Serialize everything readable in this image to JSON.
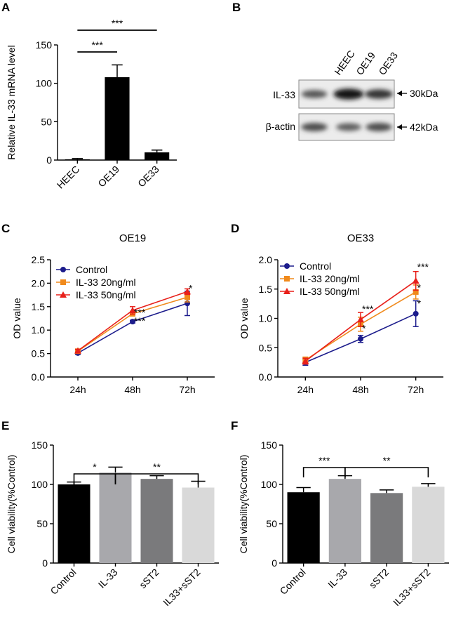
{
  "chart_data": [
    {
      "panel": "A",
      "type": "bar",
      "title": "",
      "xlabel": "",
      "ylabel": "Relative IL-33 mRNA level",
      "ylim": [
        0,
        150
      ],
      "yticks": [
        0,
        50,
        100,
        150
      ],
      "categories": [
        "HEEC",
        "OE19",
        "OE33"
      ],
      "values": [
        1,
        108,
        10
      ],
      "errors": [
        1,
        16,
        3
      ],
      "colors": [
        "#000000",
        "#000000",
        "#000000"
      ],
      "significance": [
        {
          "from": 0,
          "to": 1,
          "label": "***"
        },
        {
          "from": 0,
          "to": 2,
          "label": "***"
        }
      ]
    },
    {
      "panel": "C",
      "type": "line",
      "title": "OE19",
      "xlabel": "",
      "ylabel": "OD value",
      "ylim": [
        0,
        2.5
      ],
      "yticks": [
        0.0,
        0.5,
        1.0,
        1.5,
        2.0,
        2.5
      ],
      "x": [
        "24h",
        "48h",
        "72h"
      ],
      "series": [
        {
          "name": "Control",
          "color": "#1c1c8c",
          "marker": "circle",
          "values": [
            0.51,
            1.18,
            1.57
          ],
          "errors": [
            0.03,
            0.03,
            0.26
          ]
        },
        {
          "name": "IL-33 20ng/ml",
          "color": "#f08a1c",
          "marker": "square",
          "values": [
            0.55,
            1.35,
            1.7
          ],
          "errors": [
            0.03,
            0.05,
            0.1
          ]
        },
        {
          "name": "IL-33 50ng/ml",
          "color": "#e8201a",
          "marker": "triangle",
          "values": [
            0.56,
            1.42,
            1.82
          ],
          "errors": [
            0.03,
            0.08,
            0.06
          ]
        }
      ],
      "annotations": [
        {
          "x": "48h",
          "y": 1.3,
          "label": "***"
        },
        {
          "x": "48h",
          "y": 1.12,
          "label": "***"
        },
        {
          "x": "72h",
          "y": 1.82,
          "label": "*"
        }
      ]
    },
    {
      "panel": "D",
      "type": "line",
      "title": "OE33",
      "xlabel": "",
      "ylabel": "OD value",
      "ylim": [
        0,
        2.0
      ],
      "yticks": [
        0.0,
        0.5,
        1.0,
        1.5,
        2.0
      ],
      "x": [
        "24h",
        "48h",
        "72h"
      ],
      "series": [
        {
          "name": "Control",
          "color": "#1c1c8c",
          "marker": "circle",
          "values": [
            0.25,
            0.65,
            1.08
          ],
          "errors": [
            0.05,
            0.06,
            0.22
          ]
        },
        {
          "name": "IL-33 20ng/ml",
          "color": "#f08a1c",
          "marker": "square",
          "values": [
            0.29,
            0.9,
            1.45
          ],
          "errors": [
            0.05,
            0.12,
            0.12
          ]
        },
        {
          "name": "IL-33 50ng/ml",
          "color": "#e8201a",
          "marker": "triangle",
          "values": [
            0.27,
            0.98,
            1.64
          ],
          "errors": [
            0.05,
            0.12,
            0.16
          ]
        }
      ],
      "annotations": [
        {
          "x": "48h",
          "y": 1.1,
          "label": "***"
        },
        {
          "x": "48h",
          "y": 0.77,
          "label": "*"
        },
        {
          "x": "72h",
          "y": 1.82,
          "label": "***"
        },
        {
          "x": "72h",
          "y": 1.47,
          "label": "*"
        },
        {
          "x": "72h",
          "y": 1.2,
          "label": "*"
        }
      ]
    },
    {
      "panel": "E",
      "type": "bar",
      "title": "",
      "xlabel": "",
      "ylabel": "Cell viability(%Control)",
      "ylim": [
        0,
        150
      ],
      "yticks": [
        0,
        50,
        100,
        150
      ],
      "categories": [
        "Control",
        "IL-33",
        "sST2",
        "IL33+sST2"
      ],
      "values": [
        100,
        115,
        107,
        96
      ],
      "errors": [
        3,
        7,
        4,
        8
      ],
      "colors": [
        "#000000",
        "#a8a8ac",
        "#7a7a7c",
        "#d9d9d9"
      ],
      "significance": [
        {
          "from": 0,
          "to": 1,
          "label": "*"
        },
        {
          "from": 1,
          "to": 3,
          "label": "**"
        }
      ]
    },
    {
      "panel": "F",
      "type": "bar",
      "title": "",
      "xlabel": "",
      "ylabel": "Cell viability(%Control)",
      "ylim": [
        0,
        150
      ],
      "yticks": [
        0,
        50,
        100,
        150
      ],
      "categories": [
        "Control",
        "IL-33",
        "sST2",
        "IL33+sST2"
      ],
      "values": [
        90,
        107,
        89,
        97
      ],
      "errors": [
        6,
        4,
        4,
        4
      ],
      "colors": [
        "#000000",
        "#a8a8ac",
        "#7a7a7c",
        "#d9d9d9"
      ],
      "significance": [
        {
          "from": 0,
          "to": 1,
          "label": "***"
        },
        {
          "from": 1,
          "to": 3,
          "label": "**"
        }
      ]
    }
  ],
  "panel_letters": [
    "A",
    "B",
    "C",
    "D",
    "E",
    "F"
  ],
  "blot": {
    "lanes": [
      "HEEC",
      "OE19",
      "OE33"
    ],
    "rows": [
      {
        "label": "IL-33",
        "size": "30kDa",
        "intensities": [
          0.55,
          0.95,
          0.75
        ]
      },
      {
        "label": "β-actin",
        "size": "42kDa",
        "intensities": [
          0.6,
          0.5,
          0.6
        ]
      }
    ]
  }
}
